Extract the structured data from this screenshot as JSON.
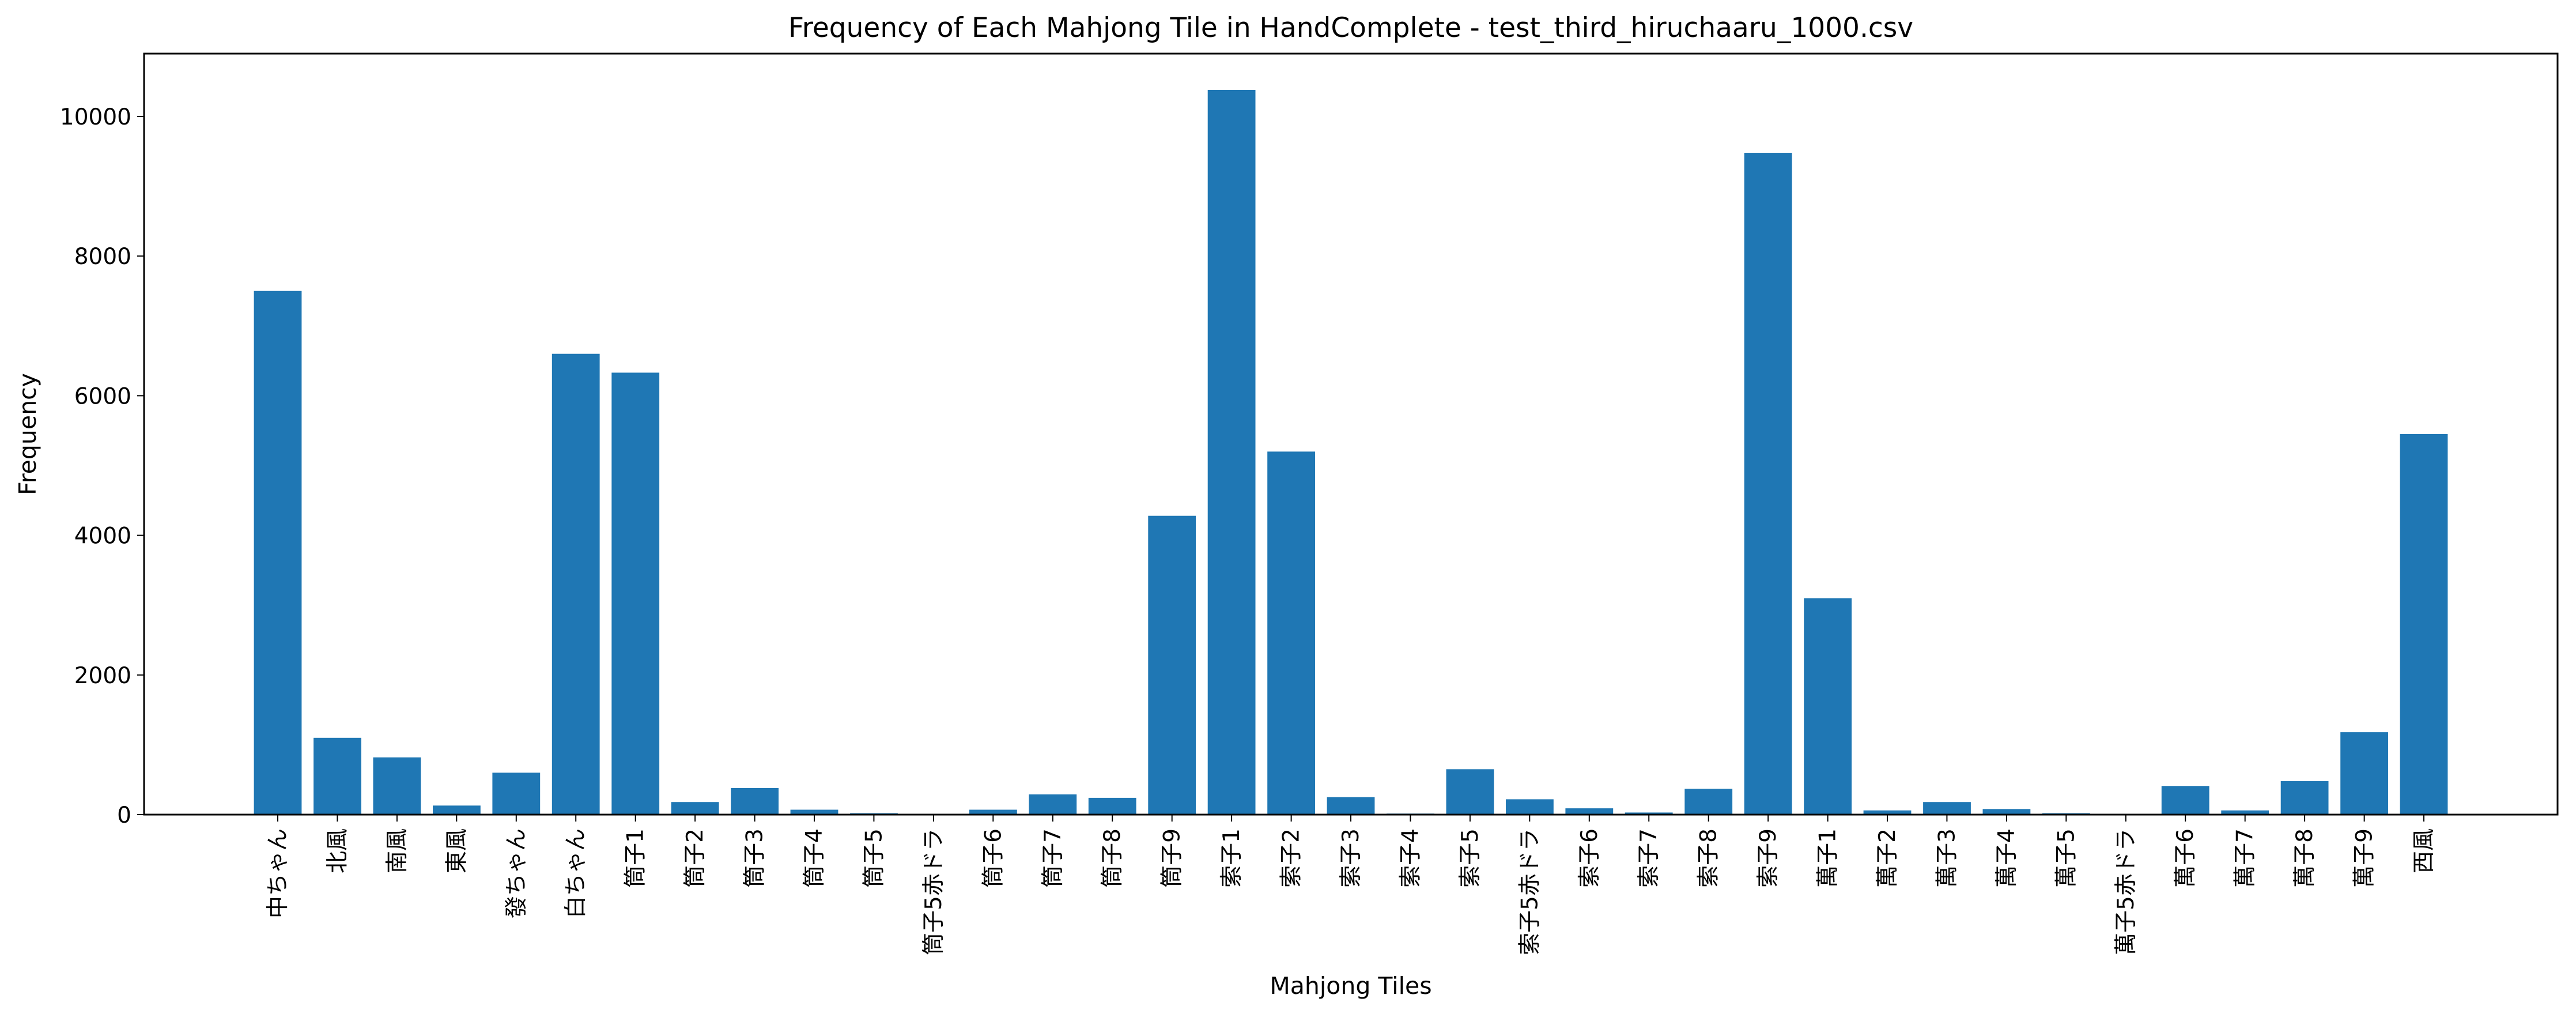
{
  "chart_data": {
    "type": "bar",
    "title": "Frequency of Each Mahjong Tile in HandComplete - test_third_hiruchaaru_1000.csv",
    "xlabel": "Mahjong Tiles",
    "ylabel": "Frequency",
    "ylim": [
      0,
      10900
    ],
    "yticks": [
      0,
      2000,
      4000,
      6000,
      8000,
      10000
    ],
    "grid": false,
    "legend": "none",
    "bar_color": "#1f77b4",
    "categories": [
      "中ちゃん",
      "北風",
      "南風",
      "東風",
      "發ちゃん",
      "白ちゃん",
      "筒子1",
      "筒子2",
      "筒子3",
      "筒子4",
      "筒子5",
      "筒子5赤ドラ",
      "筒子6",
      "筒子7",
      "筒子8",
      "筒子9",
      "索子1",
      "索子2",
      "索子3",
      "索子4",
      "索子5",
      "索子5赤ドラ",
      "索子6",
      "索子7",
      "索子8",
      "索子9",
      "萬子1",
      "萬子2",
      "萬子3",
      "萬子4",
      "萬子5",
      "萬子5赤ドラ",
      "萬子6",
      "萬子7",
      "萬子8",
      "萬子9",
      "西風"
    ],
    "values": [
      7500,
      1100,
      820,
      130,
      600,
      6600,
      6330,
      180,
      380,
      70,
      20,
      5,
      70,
      290,
      240,
      4280,
      10380,
      5200,
      250,
      15,
      650,
      220,
      90,
      30,
      370,
      9480,
      3100,
      60,
      180,
      80,
      20,
      5,
      410,
      60,
      480,
      1180,
      5450
    ]
  }
}
